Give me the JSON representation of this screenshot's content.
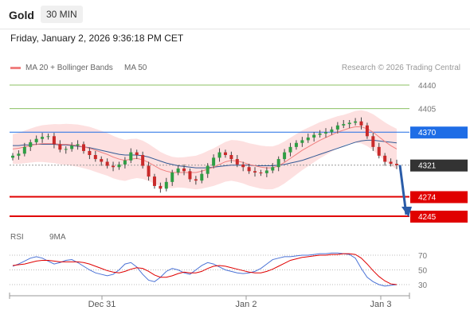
{
  "header": {
    "symbol": "Gold",
    "timeframe": "30 MIN"
  },
  "datetime": "Friday, January 2, 2026 9:36:18 PM CET",
  "legend": {
    "ma20": "MA 20 + Bollinger Bands",
    "ma50": "MA 50",
    "credit": "Research © 2026 Trading Central"
  },
  "price_axis": {
    "labels": [
      "4440",
      "4405",
      "4370",
      "4321",
      "4274",
      "4245"
    ]
  },
  "rsi_legend": {
    "rsi": "RSI",
    "ma": "9MA"
  },
  "rsi_axis": {
    "labels": [
      "70",
      "50",
      "30"
    ]
  },
  "x_axis": {
    "labels": [
      "Dec 31",
      "Jan 2",
      "Jan 3"
    ]
  },
  "colors": {
    "ma20": "#f08080",
    "ma50": "#335a95",
    "band": "#fde0e0",
    "resistance": "#1e6de6",
    "support": "#e00000",
    "target": "#8cc063",
    "last": "#333333",
    "arrow": "#2a5ca8",
    "rsi": "#4a72d6",
    "rsi_ma": "#e00000"
  },
  "chart_data": {
    "type": "candlestick",
    "instrument": "Gold",
    "timeframe": "30 MIN",
    "levels": [
      {
        "price": 4440,
        "kind": "target",
        "color": "#8cc063"
      },
      {
        "price": 4405,
        "kind": "target",
        "color": "#8cc063"
      },
      {
        "price": 4370,
        "kind": "pivot",
        "color": "#1e6de6"
      },
      {
        "price": 4321,
        "kind": "last",
        "color": "#333333"
      },
      {
        "price": 4274,
        "kind": "support",
        "color": "#e00000"
      },
      {
        "price": 4245,
        "kind": "support",
        "color": "#e00000"
      }
    ],
    "forecast": {
      "from": 4321,
      "to": 4245
    },
    "close": [
      4335,
      4338,
      4348,
      4355,
      4360,
      4363,
      4364,
      4352,
      4344,
      4345,
      4350,
      4352,
      4342,
      4336,
      4330,
      4326,
      4320,
      4318,
      4322,
      4328,
      4340,
      4336,
      4320,
      4304,
      4290,
      4286,
      4296,
      4310,
      4316,
      4312,
      4300,
      4298,
      4308,
      4320,
      4332,
      4340,
      4336,
      4330,
      4322,
      4318,
      4312,
      4310,
      4309,
      4313,
      4318,
      4330,
      4340,
      4348,
      4354,
      4358,
      4362,
      4366,
      4368,
      4370,
      4374,
      4380,
      4382,
      4384,
      4386,
      4380,
      4364,
      4348,
      4335,
      4326,
      4323,
      4321
    ],
    "ma20": [
      4345,
      4346,
      4348,
      4350,
      4352,
      4353,
      4353,
      4353,
      4352,
      4352,
      4351,
      4350,
      4348,
      4346,
      4343,
      4340,
      4337,
      4333,
      4330,
      4328,
      4330,
      4331,
      4329,
      4325,
      4320,
      4315,
      4312,
      4310,
      4310,
      4310,
      4310,
      4310,
      4312,
      4315,
      4318,
      4322,
      4326,
      4328,
      4327,
      4325,
      4322,
      4320,
      4318,
      4317,
      4317,
      4320,
      4325,
      4331,
      4337,
      4343,
      4348,
      4353,
      4358,
      4362,
      4366,
      4370,
      4373,
      4376,
      4378,
      4378,
      4375,
      4370,
      4363,
      4356,
      4350,
      4345
    ],
    "ma50": [
      4350,
      4350,
      4351,
      4351,
      4352,
      4352,
      4352,
      4352,
      4351,
      4351,
      4350,
      4349,
      4348,
      4347,
      4345,
      4343,
      4341,
      4339,
      4337,
      4336,
      4336,
      4336,
      4335,
      4333,
      4330,
      4327,
      4324,
      4322,
      4320,
      4319,
      4318,
      4317,
      4317,
      4317,
      4318,
      4319,
      4320,
      4321,
      4321,
      4321,
      4321,
      4320,
      4320,
      4320,
      4320,
      4321,
      4322,
      4324,
      4326,
      4328,
      4331,
      4334,
      4337,
      4340,
      4343,
      4346,
      4349,
      4352,
      4355,
      4357,
      4358,
      4358,
      4357,
      4356,
      4355,
      4354
    ],
    "rsi": [
      55,
      58,
      62,
      66,
      68,
      66,
      62,
      58,
      60,
      63,
      64,
      60,
      55,
      50,
      46,
      44,
      42,
      44,
      50,
      58,
      60,
      54,
      44,
      36,
      34,
      40,
      48,
      52,
      50,
      46,
      44,
      50,
      56,
      60,
      58,
      54,
      50,
      48,
      46,
      45,
      46,
      48,
      52,
      58,
      64,
      66,
      68,
      68,
      69,
      70,
      70,
      71,
      72,
      72,
      73,
      73,
      72,
      71,
      66,
      52,
      40,
      34,
      30,
      28,
      29,
      30
    ],
    "rsi_ma": [
      56,
      57,
      58,
      60,
      62,
      63,
      63,
      62,
      61,
      61,
      61,
      61,
      60,
      58,
      55,
      52,
      49,
      47,
      46,
      48,
      51,
      53,
      52,
      48,
      43,
      40,
      40,
      42,
      45,
      47,
      46,
      46,
      48,
      52,
      55,
      56,
      55,
      53,
      51,
      49,
      47,
      46,
      46,
      48,
      51,
      55,
      59,
      63,
      65,
      67,
      68,
      69,
      70,
      70,
      71,
      71,
      72,
      72,
      71,
      66,
      58,
      49,
      41,
      35,
      31,
      30
    ],
    "ylim": [
      4245,
      4450
    ],
    "rsi_ylim": [
      20,
      80
    ],
    "x_ticks": [
      "Dec 31",
      "Jan 2",
      "Jan 3"
    ]
  }
}
